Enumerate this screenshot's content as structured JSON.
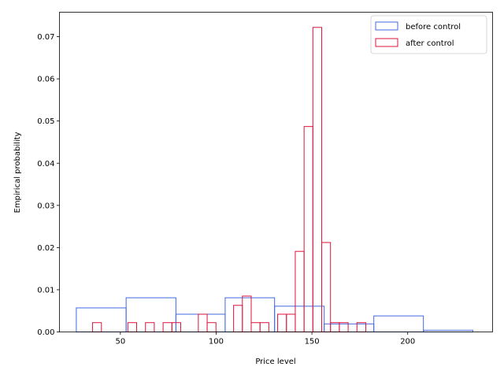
{
  "chart_data": {
    "type": "histogram",
    "xlabel": "Price level",
    "ylabel": "Empirical probability",
    "xlim": [
      18.2,
      244.3
    ],
    "ylim": [
      0,
      0.0758
    ],
    "xticks": [
      50,
      100,
      150,
      200
    ],
    "yticks": [
      0.0,
      0.01,
      0.02,
      0.03,
      0.04,
      0.05,
      0.06,
      0.07
    ],
    "ytick_labels": [
      "0.00",
      "0.01",
      "0.02",
      "0.03",
      "0.04",
      "0.05",
      "0.06",
      "0.07"
    ],
    "grid": false,
    "legend_position": "top-right",
    "series": [
      {
        "name": "before control",
        "color": "#4169e1",
        "bins": [
          {
            "x0": 27.0,
            "x1": 53.0,
            "y": 0.0057
          },
          {
            "x0": 53.0,
            "x1": 79.0,
            "y": 0.0081
          },
          {
            "x0": 79.0,
            "x1": 104.7,
            "y": 0.0042
          },
          {
            "x0": 104.7,
            "x1": 130.5,
            "y": 0.0081
          },
          {
            "x0": 130.5,
            "x1": 156.4,
            "y": 0.0061
          },
          {
            "x0": 156.4,
            "x1": 182.3,
            "y": 0.0019
          },
          {
            "x0": 182.3,
            "x1": 208.2,
            "y": 0.0038
          },
          {
            "x0": 208.2,
            "x1": 234.0,
            "y": 0.0004
          }
        ]
      },
      {
        "name": "after control",
        "color": "#dc143c",
        "bins": [
          {
            "x0": 35.5,
            "x1": 40.1,
            "y": 0.0022
          },
          {
            "x0": 40.1,
            "x1": 44.7,
            "y": 0.0
          },
          {
            "x0": 44.7,
            "x1": 49.3,
            "y": 0.0
          },
          {
            "x0": 49.3,
            "x1": 53.9,
            "y": 0.0
          },
          {
            "x0": 53.9,
            "x1": 58.5,
            "y": 0.0022
          },
          {
            "x0": 58.5,
            "x1": 63.1,
            "y": 0.0
          },
          {
            "x0": 63.1,
            "x1": 67.7,
            "y": 0.0022
          },
          {
            "x0": 67.7,
            "x1": 72.3,
            "y": 0.0
          },
          {
            "x0": 72.3,
            "x1": 76.9,
            "y": 0.0022
          },
          {
            "x0": 76.9,
            "x1": 81.5,
            "y": 0.0022
          },
          {
            "x0": 81.5,
            "x1": 86.1,
            "y": 0.0
          },
          {
            "x0": 86.1,
            "x1": 90.7,
            "y": 0.0
          },
          {
            "x0": 90.7,
            "x1": 95.3,
            "y": 0.0042
          },
          {
            "x0": 95.3,
            "x1": 99.9,
            "y": 0.0022
          },
          {
            "x0": 99.9,
            "x1": 104.5,
            "y": 0.0
          },
          {
            "x0": 104.5,
            "x1": 109.1,
            "y": 0.0
          },
          {
            "x0": 109.1,
            "x1": 113.7,
            "y": 0.0063
          },
          {
            "x0": 113.7,
            "x1": 118.3,
            "y": 0.0085
          },
          {
            "x0": 118.3,
            "x1": 122.9,
            "y": 0.0022
          },
          {
            "x0": 122.9,
            "x1": 127.5,
            "y": 0.0022
          },
          {
            "x0": 127.5,
            "x1": 132.1,
            "y": 0.0
          },
          {
            "x0": 132.1,
            "x1": 136.7,
            "y": 0.0042
          },
          {
            "x0": 136.7,
            "x1": 141.3,
            "y": 0.0042
          },
          {
            "x0": 141.3,
            "x1": 145.9,
            "y": 0.0191
          },
          {
            "x0": 145.9,
            "x1": 150.5,
            "y": 0.0487
          },
          {
            "x0": 150.5,
            "x1": 155.1,
            "y": 0.0722
          },
          {
            "x0": 155.1,
            "x1": 159.7,
            "y": 0.0212
          },
          {
            "x0": 159.7,
            "x1": 164.3,
            "y": 0.0022
          },
          {
            "x0": 164.3,
            "x1": 168.9,
            "y": 0.0022
          },
          {
            "x0": 168.9,
            "x1": 173.5,
            "y": 0.0
          },
          {
            "x0": 173.5,
            "x1": 178.1,
            "y": 0.0022
          }
        ]
      }
    ]
  }
}
